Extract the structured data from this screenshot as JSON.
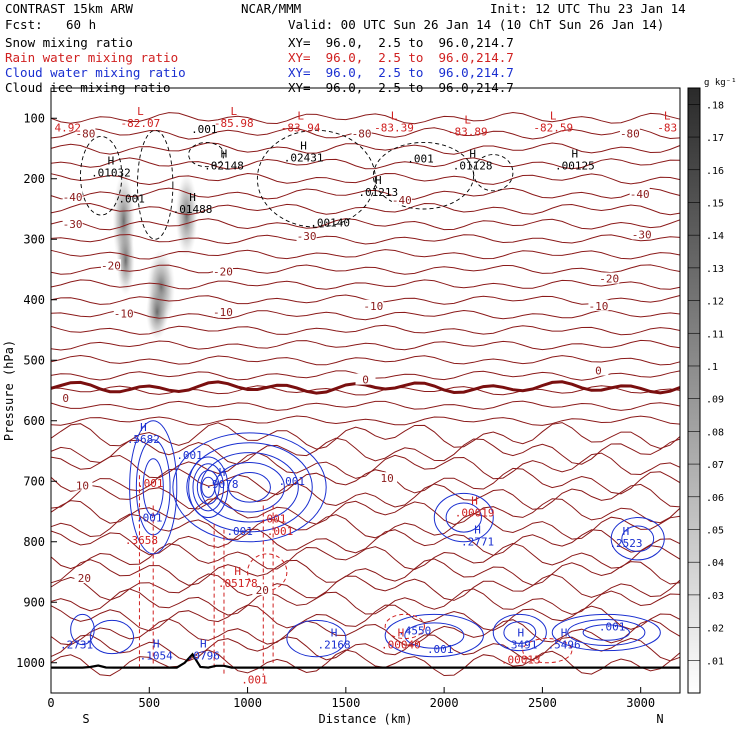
{
  "header": {
    "model": "CONTRAST 15km ARW",
    "org": "NCAR/MMM",
    "init": "Init: 12 UTC Thu 23 Jan 14",
    "fcst_label": "Fcst:",
    "fcst_value": "60 h",
    "valid": "Valid: 00 UTC Sun 26 Jan 14 (10 ChT Sun 26 Jan 14)",
    "fields": [
      {
        "name": "Snow mixing ratio",
        "xy": "XY=  96.0,  2.5 to  96.0,214.7",
        "color": "#000000"
      },
      {
        "name": "Rain water mixing ratio",
        "xy": "XY=  96.0,  2.5 to  96.0,214.7",
        "color": "#d02020"
      },
      {
        "name": "Cloud water mixing ratio",
        "xy": "XY=  96.0,  2.5 to  96.0,214.7",
        "color": "#1a2fd0"
      },
      {
        "name": "Cloud ice mixing ratio",
        "xy": "XY=  96.0,  2.5 to  96.0,214.7",
        "color": "#000000"
      }
    ]
  },
  "chart_data": {
    "type": "contour cross-section",
    "xlabel": "Distance (km)",
    "ylabel": "Pressure (hPa)",
    "xlim": [
      0,
      3200
    ],
    "ylim": [
      1050,
      50
    ],
    "x_ticks": [
      "0",
      "500",
      "1000",
      "1500",
      "2000",
      "2500",
      "3000"
    ],
    "y_ticks": [
      "100",
      "200",
      "300",
      "400",
      "500",
      "600",
      "700",
      "800",
      "900",
      "1000"
    ],
    "end_labels": {
      "left": "S",
      "right": "N"
    },
    "colorbar": {
      "unit": "g kg⁻¹",
      "ticks": [
        ".01",
        ".02",
        ".03",
        ".04",
        ".05",
        ".06",
        ".07",
        ".08",
        ".09",
        ".1",
        ".11",
        ".12",
        ".13",
        ".14",
        ".15",
        ".16",
        ".17",
        ".18"
      ]
    },
    "temperature_contours": [
      {
        "label": "-80",
        "p": 125
      },
      {
        "label": "-40",
        "p": 262
      },
      {
        "label": "-30",
        "p": 298
      },
      {
        "label": "-20",
        "p": 348
      },
      {
        "label": "-10",
        "p": 408
      },
      {
        "label": "0",
        "p": 545
      },
      {
        "label": "10",
        "p": 705
      },
      {
        "label": "20",
        "p": 860
      }
    ],
    "temperature_labels": [
      {
        "text": "-80",
        "x": 175,
        "p": 125
      },
      {
        "text": "-80",
        "x": 1580,
        "p": 125
      },
      {
        "text": "-80",
        "x": 2945,
        "p": 125
      },
      {
        "text": "-40",
        "x": 110,
        "p": 230
      },
      {
        "text": "-40",
        "x": 1785,
        "p": 235
      },
      {
        "text": "-40",
        "x": 2995,
        "p": 225
      },
      {
        "text": "-30",
        "x": 110,
        "p": 275
      },
      {
        "text": "-30",
        "x": 1300,
        "p": 295
      },
      {
        "text": "-30",
        "x": 3005,
        "p": 292
      },
      {
        "text": "-20",
        "x": 305,
        "p": 343
      },
      {
        "text": "-20",
        "x": 875,
        "p": 353
      },
      {
        "text": "-20",
        "x": 2840,
        "p": 365
      },
      {
        "text": "-10",
        "x": 370,
        "p": 423
      },
      {
        "text": "-10",
        "x": 875,
        "p": 420
      },
      {
        "text": "-10",
        "x": 1640,
        "p": 410
      },
      {
        "text": "-10",
        "x": 2785,
        "p": 410
      },
      {
        "text": "0",
        "x": 75,
        "p": 562
      },
      {
        "text": "0",
        "x": 1600,
        "p": 532
      },
      {
        "text": "0",
        "x": 2785,
        "p": 517
      },
      {
        "text": "10",
        "x": 160,
        "p": 707
      },
      {
        "text": "10",
        "x": 1710,
        "p": 695
      },
      {
        "text": "20",
        "x": 170,
        "p": 860
      },
      {
        "text": "20",
        "x": 1075,
        "p": 880
      }
    ],
    "extrema": [
      {
        "kind": "L",
        "value": "-82.07",
        "x": 455,
        "p": 98,
        "color": "red"
      },
      {
        "kind": "L",
        "value": "-85.98",
        "x": 930,
        "p": 98,
        "color": "red"
      },
      {
        "kind": "L",
        "value": "-83.94",
        "x": 1270,
        "p": 105,
        "color": "red"
      },
      {
        "kind": "L",
        "value": "-83.39",
        "x": 1745,
        "p": 105,
        "color": "red"
      },
      {
        "kind": "L",
        "value": "-83.89",
        "x": 2120,
        "p": 112,
        "color": "red"
      },
      {
        "kind": "L",
        "value": "-82.59",
        "x": 2555,
        "p": 105,
        "color": "red"
      },
      {
        "kind": "L",
        "value": "-83",
        "x": 3135,
        "p": 105,
        "color": "red"
      },
      {
        "kind": "",
        "value": "4.92",
        "x": 85,
        "p": 105,
        "color": "red"
      },
      {
        "kind": "H",
        "value": ".01032",
        "x": 305,
        "p": 180,
        "color": "black"
      },
      {
        "kind": "",
        "value": ".001",
        "x": 410,
        "p": 223,
        "color": "black"
      },
      {
        "kind": "",
        "value": ".001",
        "x": 780,
        "p": 108,
        "color": "black"
      },
      {
        "kind": "H",
        "value": ".02148",
        "x": 880,
        "p": 168,
        "color": "black"
      },
      {
        "kind": "H",
        "value": ".02431",
        "x": 1285,
        "p": 155,
        "color": "black"
      },
      {
        "kind": "H",
        "value": ".01488",
        "x": 720,
        "p": 240,
        "color": "black"
      },
      {
        "kind": "H",
        "value": ".01213",
        "x": 1665,
        "p": 212,
        "color": "black"
      },
      {
        "kind": "",
        "value": ".00140",
        "x": 1420,
        "p": 262,
        "color": "black"
      },
      {
        "kind": "",
        "value": ".001",
        "x": 1880,
        "p": 157,
        "color": "black"
      },
      {
        "kind": "H",
        "value": ".01128",
        "x": 2145,
        "p": 168,
        "color": "black"
      },
      {
        "kind": "H",
        "value": ".00125",
        "x": 2665,
        "p": 168,
        "color": "black"
      },
      {
        "kind": "H",
        "value": ".5682",
        "x": 470,
        "p": 620,
        "color": "blue"
      },
      {
        "kind": "",
        "value": ".001",
        "x": 705,
        "p": 647,
        "color": "blue"
      },
      {
        "kind": "",
        "value": ".001",
        "x": 505,
        "p": 693,
        "color": "red"
      },
      {
        "kind": "H",
        "value": ".9078",
        "x": 870,
        "p": 695,
        "color": "blue"
      },
      {
        "kind": "",
        "value": ".001",
        "x": 1225,
        "p": 690,
        "color": "blue"
      },
      {
        "kind": "",
        "value": ".001",
        "x": 500,
        "p": 750,
        "color": "blue"
      },
      {
        "kind": "",
        "value": ".001",
        "x": 960,
        "p": 772,
        "color": "blue"
      },
      {
        "kind": "",
        "value": ".001",
        "x": 1130,
        "p": 752,
        "color": "red"
      },
      {
        "kind": "",
        "value": ".001",
        "x": 1165,
        "p": 772,
        "color": "red"
      },
      {
        "kind": "",
        "value": ".3658",
        "x": 460,
        "p": 787,
        "color": "red"
      },
      {
        "kind": "H",
        "value": ".05178",
        "x": 950,
        "p": 858,
        "color": "red"
      },
      {
        "kind": "H",
        "value": ".00019",
        "x": 2155,
        "p": 742,
        "color": "red"
      },
      {
        "kind": "H",
        "value": ".2771",
        "x": 2170,
        "p": 790,
        "color": "blue"
      },
      {
        "kind": "H",
        "value": ".2523",
        "x": 2925,
        "p": 792,
        "color": "blue"
      },
      {
        "kind": "",
        "value": ".2731",
        "x": 130,
        "p": 960,
        "color": "blue"
      },
      {
        "kind": "H",
        "value": ".1054",
        "x": 535,
        "p": 978,
        "color": "blue"
      },
      {
        "kind": "H",
        "value": ".0796",
        "x": 775,
        "p": 978,
        "color": "blue"
      },
      {
        "kind": "H",
        "value": ".2168",
        "x": 1440,
        "p": 960,
        "color": "blue"
      },
      {
        "kind": "",
        "value": ".4550",
        "x": 1850,
        "p": 937,
        "color": "blue"
      },
      {
        "kind": "H",
        "value": ".00040",
        "x": 1780,
        "p": 960,
        "color": "red"
      },
      {
        "kind": "",
        "value": ".001",
        "x": 1980,
        "p": 967,
        "color": "blue"
      },
      {
        "kind": "H",
        "value": ".3491",
        "x": 2390,
        "p": 960,
        "color": "blue"
      },
      {
        "kind": "",
        "value": ".00013",
        "x": 2390,
        "p": 985,
        "color": "red"
      },
      {
        "kind": "H",
        "value": ".5496",
        "x": 2610,
        "p": 960,
        "color": "blue"
      },
      {
        "kind": "",
        "value": ".001",
        "x": 2855,
        "p": 930,
        "color": "blue"
      },
      {
        "kind": "",
        "value": ".001",
        "x": 1035,
        "p": 1018,
        "color": "red"
      }
    ]
  }
}
